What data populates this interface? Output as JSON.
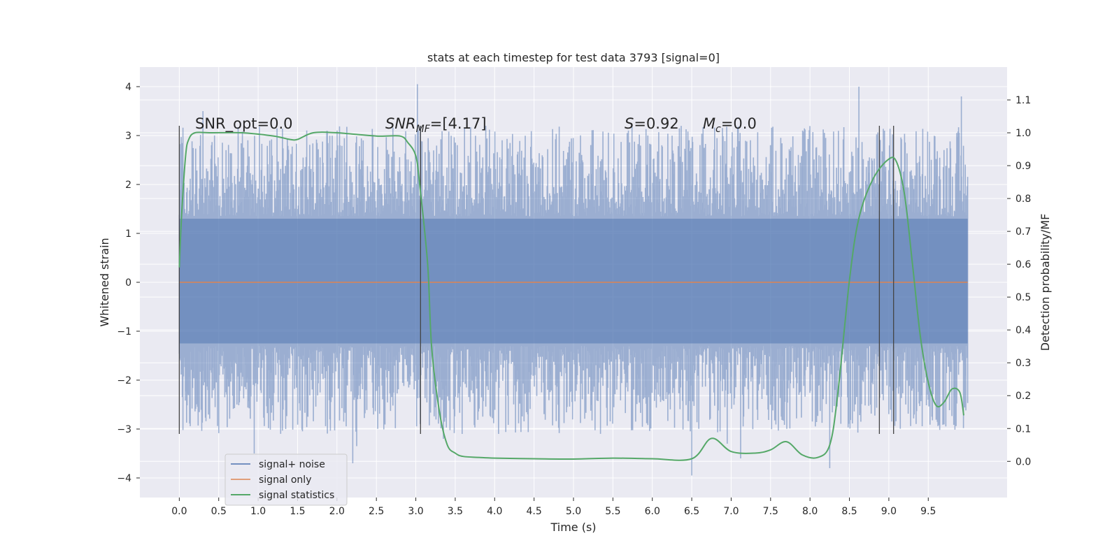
{
  "chart_data": {
    "type": "line",
    "title": "stats at each timestep for test data 3793 [signal=0]",
    "xlabel": "Time (s)",
    "ylabel": "Whitened strain",
    "y2label": "Detection probability/MF",
    "xlim": [
      -0.5,
      10.5
    ],
    "ylim": [
      -4.4,
      4.4
    ],
    "y2lim": [
      -0.11,
      1.2
    ],
    "x_ticks": [
      0.0,
      0.5,
      1.0,
      1.5,
      2.0,
      2.5,
      3.0,
      3.5,
      4.0,
      4.5,
      5.0,
      5.5,
      6.0,
      6.5,
      7.0,
      7.5,
      8.0,
      8.5,
      9.0,
      9.5
    ],
    "x_tick_labels": [
      "0.0",
      "0.5",
      "1.0",
      "1.5",
      "2.0",
      "2.5",
      "3.0",
      "3.5",
      "4.0",
      "4.5",
      "5.0",
      "5.5",
      "6.0",
      "6.5",
      "7.0",
      "7.5",
      "8.0",
      "8.5",
      "9.0",
      "9.5"
    ],
    "y_ticks": [
      -4,
      -3,
      -2,
      -1,
      0,
      1,
      2,
      3,
      4
    ],
    "y_tick_labels": [
      "−4",
      "−3",
      "−2",
      "−1",
      "0",
      "1",
      "2",
      "3",
      "4"
    ],
    "y2_ticks": [
      0.0,
      0.1,
      0.2,
      0.3,
      0.4,
      0.5,
      0.6,
      0.7,
      0.8,
      0.9,
      1.0,
      1.1
    ],
    "y2_tick_labels": [
      "0.0",
      "0.1",
      "0.2",
      "0.3",
      "0.4",
      "0.5",
      "0.6",
      "0.7",
      "0.8",
      "0.9",
      "1.0",
      "1.1"
    ],
    "grid": true,
    "legend_position": "lower-left",
    "annotations": {
      "snr_opt": "SNR_opt=0.0",
      "snr_mf_main": "SNR",
      "snr_mf_sub": "MF",
      "snr_mf_value": "=[4.17]",
      "s_symbol": "S",
      "s_value": "=0.92",
      "mc_main": "M",
      "mc_sub": "c",
      "mc_value": "=0.0"
    },
    "vertical_markers": [
      0.0,
      3.06,
      8.88,
      9.06
    ],
    "marker_range_y": [
      -3.1,
      3.2
    ],
    "series": [
      {
        "name": "signal+ noise",
        "color": "#4c72b0",
        "style": "noise",
        "x_range": [
          0.0,
          10.0
        ],
        "band": [
          -1.25,
          1.3
        ],
        "envelope": [
          -3.1,
          3.2
        ],
        "spikes": [
          [
            0.3,
            3.5
          ],
          [
            0.95,
            -3.5
          ],
          [
            1.35,
            -3.0
          ],
          [
            2.25,
            -3.35
          ],
          [
            2.2,
            -3.7
          ],
          [
            3.02,
            4.05
          ],
          [
            3.35,
            -3.2
          ],
          [
            4.05,
            -3.1
          ],
          [
            6.5,
            -3.95
          ],
          [
            6.95,
            -3.3
          ],
          [
            7.12,
            -3.6
          ],
          [
            8.25,
            -3.8
          ],
          [
            8.62,
            4.0
          ],
          [
            9.92,
            3.8
          ]
        ]
      },
      {
        "name": "signal only",
        "color": "#dd8452",
        "values_constant": 0.0
      },
      {
        "name": "signal statistics",
        "color": "#55a868",
        "axis": "right",
        "x": [
          0.0,
          0.03,
          0.08,
          0.12,
          0.2,
          0.4,
          0.8,
          1.2,
          1.4,
          1.5,
          1.7,
          2.0,
          2.5,
          2.8,
          2.9,
          3.0,
          3.05,
          3.15,
          3.2,
          3.3,
          3.4,
          3.5,
          3.6,
          3.8,
          4.0,
          4.5,
          5.0,
          5.5,
          6.0,
          6.5,
          6.75,
          7.0,
          7.3,
          7.5,
          7.7,
          7.9,
          8.1,
          8.25,
          8.35,
          8.5,
          8.62,
          8.8,
          9.0,
          9.1,
          9.2,
          9.3,
          9.4,
          9.5,
          9.6,
          9.7,
          9.8,
          9.9,
          9.95
        ],
        "values": [
          0.59,
          0.75,
          0.93,
          0.98,
          1.0,
          1.0,
          1.0,
          0.99,
          0.98,
          0.98,
          1.0,
          1.0,
          0.99,
          0.99,
          0.97,
          0.93,
          0.84,
          0.6,
          0.35,
          0.15,
          0.05,
          0.025,
          0.015,
          0.012,
          0.01,
          0.008,
          0.007,
          0.01,
          0.008,
          0.008,
          0.07,
          0.03,
          0.025,
          0.035,
          0.06,
          0.02,
          0.012,
          0.05,
          0.2,
          0.55,
          0.74,
          0.86,
          0.92,
          0.91,
          0.81,
          0.6,
          0.38,
          0.24,
          0.17,
          0.18,
          0.22,
          0.21,
          0.14
        ]
      }
    ]
  }
}
